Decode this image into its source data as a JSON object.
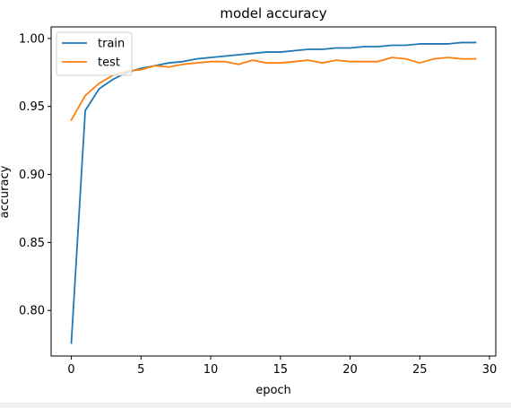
{
  "chart_data": {
    "type": "line",
    "title": "model accuracy",
    "xlabel": "epoch",
    "ylabel": "accuracy",
    "xlim": [
      -1.45,
      30.45
    ],
    "ylim": [
      0.7665,
      1.0085
    ],
    "xticks": [
      0,
      5,
      10,
      15,
      20,
      25,
      30
    ],
    "yticks": [
      0.8,
      0.85,
      0.9,
      0.95,
      1.0
    ],
    "xtick_labels": [
      "0",
      "5",
      "10",
      "15",
      "20",
      "25",
      "30"
    ],
    "ytick_labels": [
      "0.80",
      "0.85",
      "0.90",
      "0.95",
      "1.00"
    ],
    "grid": false,
    "legend_position": "upper-left",
    "x": [
      0,
      1,
      2,
      3,
      4,
      5,
      6,
      7,
      8,
      9,
      10,
      11,
      12,
      13,
      14,
      15,
      16,
      17,
      18,
      19,
      20,
      21,
      22,
      23,
      24,
      25,
      26,
      27,
      28,
      29
    ],
    "series": [
      {
        "name": "train",
        "color": "#1f77b4",
        "values": [
          0.776,
          0.947,
          0.963,
          0.97,
          0.975,
          0.978,
          0.98,
          0.982,
          0.983,
          0.985,
          0.986,
          0.987,
          0.988,
          0.989,
          0.99,
          0.99,
          0.991,
          0.992,
          0.992,
          0.993,
          0.993,
          0.994,
          0.994,
          0.995,
          0.995,
          0.996,
          0.996,
          0.996,
          0.997,
          0.997
        ]
      },
      {
        "name": "test",
        "color": "#ff7f0e",
        "values": [
          0.94,
          0.958,
          0.967,
          0.973,
          0.976,
          0.977,
          0.98,
          0.979,
          0.981,
          0.982,
          0.983,
          0.983,
          0.981,
          0.984,
          0.982,
          0.982,
          0.983,
          0.984,
          0.982,
          0.984,
          0.983,
          0.983,
          0.983,
          0.986,
          0.985,
          0.982,
          0.985,
          0.986,
          0.985,
          0.985
        ]
      }
    ]
  }
}
